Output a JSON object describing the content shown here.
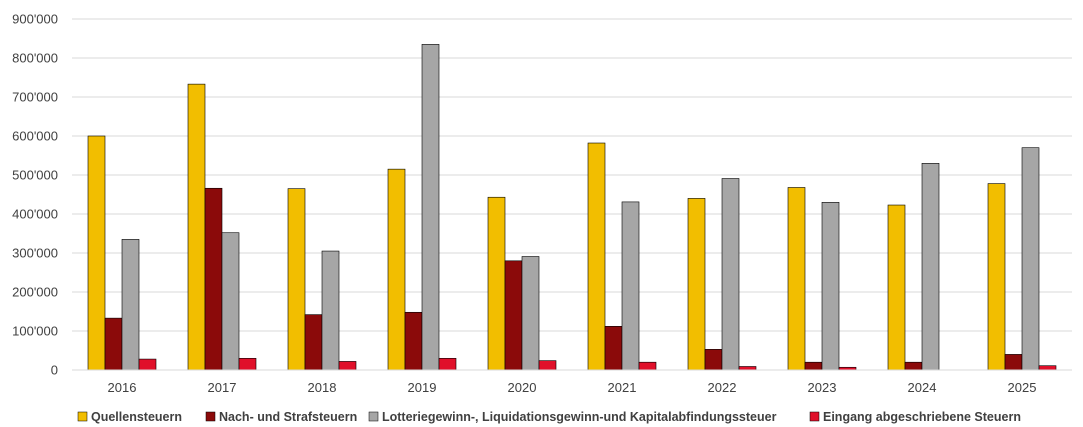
{
  "chart_data": {
    "type": "bar",
    "title": "",
    "xlabel": "",
    "ylabel": "",
    "categories": [
      "2016",
      "2017",
      "2018",
      "2019",
      "2020",
      "2021",
      "2022",
      "2023",
      "2024",
      "2025"
    ],
    "ylim": [
      0,
      900000
    ],
    "yticks": [
      0,
      100000,
      200000,
      300000,
      400000,
      500000,
      600000,
      700000,
      800000,
      900000
    ],
    "ytick_labels": [
      "0",
      "100'000",
      "200'000",
      "300'000",
      "400'000",
      "500'000",
      "600'000",
      "700'000",
      "800'000",
      "900'000"
    ],
    "grid": true,
    "legend_position": "bottom",
    "series": [
      {
        "name": "Quellensteuern",
        "color": "#F2BE00",
        "values": [
          600000,
          733000,
          465000,
          515000,
          443000,
          582000,
          440000,
          468000,
          423000,
          478000
        ]
      },
      {
        "name": "Nach- und Strafsteuern",
        "color": "#8B0A0A",
        "values": [
          133000,
          466000,
          142000,
          148000,
          280000,
          112000,
          53000,
          20000,
          20000,
          40000
        ]
      },
      {
        "name": "Lotteriegewinn-, Liquidationsgewinn-und Kapitalabfindungssteuer",
        "color": "#A6A6A6",
        "values": [
          335000,
          352000,
          305000,
          835000,
          291000,
          431000,
          491000,
          430000,
          530000,
          570000
        ]
      },
      {
        "name": "Eingang abgeschriebene Steuern",
        "color": "#E0102A",
        "values": [
          28000,
          30000,
          22000,
          30000,
          24000,
          20000,
          9000,
          7000,
          0,
          11000
        ]
      }
    ]
  }
}
